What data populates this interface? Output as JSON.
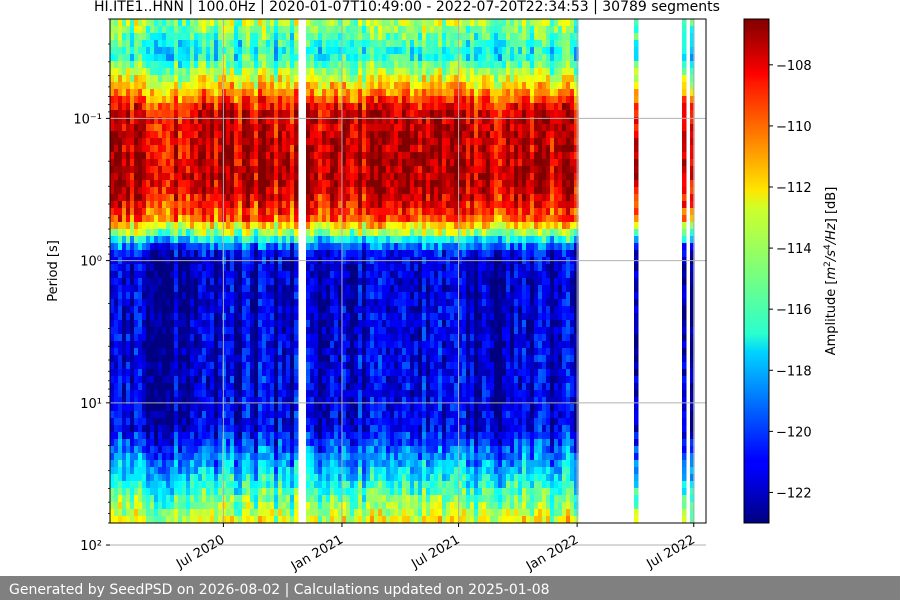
{
  "chart_data": {
    "type": "heatmap",
    "title": "HI.ITE1..HNN | 100.0Hz | 2020-01-07T10:49:00 - 2022-07-20T22:34:53 | 30789 segments",
    "ylabel": "Period [s]",
    "yscale": "log",
    "yaxis_inverted": true,
    "ylim": [
      0.02,
      70
    ],
    "yticks": [
      {
        "value": 0.1,
        "label": "10⁻¹"
      },
      {
        "value": 1,
        "label": "10⁰"
      },
      {
        "value": 10,
        "label": "10¹"
      },
      {
        "value": 100,
        "label": "10²"
      }
    ],
    "xlim": [
      "2020-01-07",
      "2022-07-20"
    ],
    "xticks": [
      {
        "date": "2020-07-01",
        "label": "Jul 2020"
      },
      {
        "date": "2021-01-01",
        "label": "Jan 2021"
      },
      {
        "date": "2021-07-01",
        "label": "Jul 2021"
      },
      {
        "date": "2022-01-01",
        "label": "Jan 2022"
      },
      {
        "date": "2022-07-01",
        "label": "Jul 2022"
      }
    ],
    "grid": true,
    "colormap": "jet",
    "colorbar": {
      "label": "Amplitude [m²/s⁴/Hz] [dB]",
      "label_parts": {
        "pre": "Amplitude [",
        "m": "m",
        "exp1": "2",
        "s": "/s",
        "exp2": "4",
        "hz": "/Hz",
        "post": "] [dB]"
      },
      "min": -123,
      "max": -106.5,
      "ticks": [
        -108,
        -110,
        -112,
        -114,
        -116,
        -118,
        -120,
        -122
      ],
      "tick_labels": [
        "−108",
        "−110",
        "−112",
        "−114",
        "−116",
        "−118",
        "−120",
        "−122"
      ]
    },
    "profile_db": [
      {
        "period": 0.02,
        "db": -114
      },
      {
        "period": 0.035,
        "db": -117
      },
      {
        "period": 0.06,
        "db": -112
      },
      {
        "period": 0.09,
        "db": -108
      },
      {
        "period": 0.3,
        "db": -107.5
      },
      {
        "period": 0.5,
        "db": -110
      },
      {
        "period": 0.65,
        "db": -115
      },
      {
        "period": 0.85,
        "db": -121
      },
      {
        "period": 1.1,
        "db": -122
      },
      {
        "period": 15,
        "db": -121.5
      },
      {
        "period": 35,
        "db": -117
      },
      {
        "period": 70,
        "db": -113
      }
    ],
    "data_gaps": [
      {
        "start": "2020-10-25",
        "end": "2020-11-08"
      },
      {
        "start": "2021-10-05",
        "end": "2021-10-09"
      },
      {
        "start": "2022-01-01",
        "end": "2022-04-01"
      },
      {
        "start": "2022-04-04",
        "end": "2022-06-13"
      },
      {
        "start": "2022-06-16",
        "end": "2022-06-28"
      },
      {
        "start": "2022-07-04",
        "end": "2022-07-19"
      }
    ]
  },
  "footer": {
    "text": "Generated by SeedPSD on 2026-08-02 | Calculations updated on 2025-01-08"
  }
}
